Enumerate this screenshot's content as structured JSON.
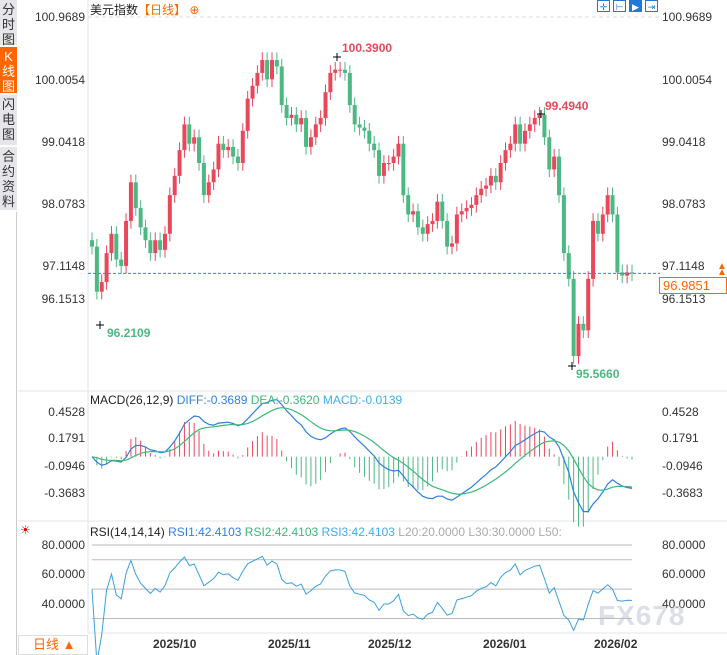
{
  "side_tabs": [
    {
      "label": "分时图",
      "active": false
    },
    {
      "label": "K线图",
      "active": true
    },
    {
      "label": "闪电图",
      "active": false
    },
    {
      "label": "合约资料",
      "active": false
    }
  ],
  "title": {
    "name": "美元指数",
    "period": "【日线】",
    "add_icon": "plus-circle-icon"
  },
  "toolbar_icons": [
    "crosshair-icon",
    "range-icon",
    "play-icon",
    "exit-icon"
  ],
  "price_axis": {
    "ticks": [
      "100.9689",
      "100.0054",
      "99.0418",
      "98.0783",
      "97.1148",
      "96.1513"
    ],
    "range": [
      96.1513,
      100.9689
    ]
  },
  "current_price": "96.9851",
  "annotations": {
    "high1": "100.3900",
    "high2": "99.4940",
    "low1": "96.2109",
    "low2": "95.5660"
  },
  "colors": {
    "up": "#e8485a",
    "down": "#4cb882",
    "diff": "#2f7fe0",
    "dea": "#3cb878",
    "rsi": "#3aa0e0",
    "accent": "#ff6600",
    "current_line": "#1e88ff"
  },
  "candles": {
    "closes": [
      97.4,
      96.7,
      96.85,
      97.3,
      97.6,
      97.2,
      97.1,
      97.8,
      98.4,
      98.0,
      97.7,
      97.5,
      97.3,
      97.5,
      97.35,
      97.6,
      98.2,
      98.5,
      98.9,
      99.3,
      99.0,
      99.1,
      98.7,
      98.2,
      98.4,
      98.6,
      99.0,
      98.9,
      98.95,
      98.8,
      98.7,
      99.2,
      99.7,
      99.9,
      100.1,
      100.3,
      100.0,
      100.3,
      100.2,
      99.6,
      99.4,
      99.45,
      99.3,
      99.4,
      98.95,
      99.1,
      99.3,
      99.4,
      99.8,
      100.1,
      100.15,
      100.15,
      100.1,
      99.6,
      99.3,
      99.25,
      99.2,
      99.0,
      98.9,
      98.5,
      98.7,
      98.7,
      98.8,
      99.0,
      98.2,
      97.9,
      97.95,
      97.7,
      97.6,
      97.75,
      97.8,
      98.1,
      97.8,
      97.4,
      97.45,
      97.9,
      97.95,
      98.0,
      98.05,
      98.2,
      98.3,
      98.35,
      98.5,
      98.4,
      98.7,
      98.9,
      99.0,
      99.3,
      99.0,
      99.2,
      99.3,
      99.4,
      99.45,
      99.1,
      98.6,
      98.8,
      98.2,
      97.3,
      96.9,
      95.7,
      96.2,
      96.1,
      96.9,
      97.8,
      97.6,
      97.9,
      98.2,
      97.9,
      97.0,
      96.95,
      97.0,
      96.9851
    ]
  },
  "macd": {
    "label": "MACD(26,12,9)",
    "diff": "DIFF:-0.3689",
    "dea": "DEA:-0.3620",
    "macd": "MACD:-0.0139",
    "ticks": [
      "0.4528",
      "0.1791",
      "-0.0946",
      "-0.3683"
    ]
  },
  "rsi": {
    "label": "RSI(14,14,14)",
    "rsi1": "RSI1:42.4103",
    "rsi2": "RSI2:42.4103",
    "rsi3": "RSI3:42.4103",
    "l20": "L20:20.0000",
    "l30": "L30:30.0000",
    "l50": "L50:",
    "ticks": [
      "80.0000",
      "60.0000",
      "40.0000"
    ],
    "settings_icon": "gear-icon"
  },
  "dates": [
    "2025/10",
    "2025/11",
    "2025/12",
    "2026/01",
    "2026/02"
  ],
  "period_button": "日线 ▲",
  "watermark": "FX678"
}
